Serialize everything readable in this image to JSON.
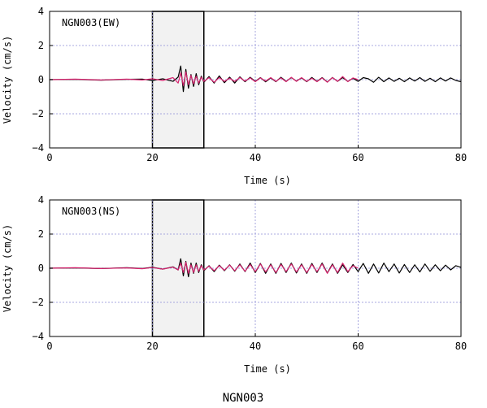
{
  "figure_caption": "NGN003",
  "colors": {
    "observed": "#000000",
    "synthetic": "#d6246e",
    "grid": "#8f8fd6",
    "window_fill": "#f2f2f2"
  },
  "chart_data": [
    {
      "type": "line",
      "station_label": "NGN003(EW)",
      "xlabel": "Time (s)",
      "ylabel": "Velocity (cm/s)",
      "xlim": [
        0,
        80
      ],
      "ylim": [
        -4,
        4
      ],
      "xticks": [
        "0",
        "20",
        "40",
        "60",
        "80"
      ],
      "yticks": [
        "4",
        "2",
        "0",
        "−2",
        "−4"
      ],
      "xtick_values": [
        0,
        20,
        40,
        60,
        80
      ],
      "ytick_values": [
        4,
        2,
        0,
        -2,
        -4
      ],
      "grid": true,
      "highlight_window": [
        20,
        30
      ],
      "series": [
        {
          "key": "observed",
          "x": [
            0,
            5,
            10,
            15,
            18,
            20,
            22,
            24,
            25,
            25.5,
            26,
            26.5,
            27,
            27.5,
            28,
            28.5,
            29,
            29.5,
            30,
            31,
            32,
            33,
            34,
            35,
            36,
            37,
            38,
            39,
            40,
            41,
            42,
            43,
            44,
            45,
            46,
            47,
            48,
            49,
            50,
            51,
            52,
            53,
            54,
            55,
            56,
            57,
            58,
            59,
            60,
            61,
            62,
            63,
            64,
            65,
            66,
            67,
            68,
            69,
            70,
            71,
            72,
            73,
            74,
            75,
            76,
            77,
            78,
            79,
            80
          ],
          "y": [
            0,
            0.02,
            -0.03,
            0.02,
            0.03,
            -0.05,
            0.05,
            -0.1,
            0.15,
            0.8,
            -0.7,
            0.6,
            -0.5,
            0.3,
            -0.4,
            0.35,
            -0.3,
            0.2,
            -0.15,
            0.18,
            -0.2,
            0.22,
            -0.18,
            0.15,
            -0.2,
            0.16,
            -0.12,
            0.14,
            -0.1,
            0.12,
            -0.13,
            0.1,
            -0.12,
            0.14,
            -0.1,
            0.12,
            -0.08,
            0.1,
            -0.12,
            0.13,
            -0.1,
            0.12,
            -0.14,
            0.13,
            -0.1,
            0.12,
            -0.1,
            0.08,
            -0.1,
            0.12,
            0.05,
            -0.15,
            0.14,
            -0.12,
            0.1,
            -0.1,
            0.08,
            -0.12,
            0.1,
            -0.08,
            0.12,
            -0.1,
            0.08,
            -0.12,
            0.1,
            -0.08,
            0.1,
            -0.05,
            -0.12
          ]
        },
        {
          "key": "synthetic",
          "x": [
            0,
            5,
            10,
            15,
            18,
            20,
            22,
            24,
            25,
            25.5,
            26,
            26.5,
            27,
            27.5,
            28,
            28.5,
            29,
            29.5,
            30,
            31,
            32,
            33,
            34,
            35,
            36,
            37,
            38,
            39,
            40,
            41,
            42,
            43,
            44,
            45,
            46,
            47,
            48,
            49,
            50,
            51,
            52,
            53,
            54,
            55,
            56,
            57,
            58,
            59,
            60
          ],
          "y": [
            0,
            0.03,
            -0.02,
            0.03,
            -0.02,
            0.05,
            -0.05,
            0.12,
            -0.2,
            0.4,
            -0.35,
            0.45,
            -0.3,
            0.25,
            -0.25,
            0.2,
            -0.2,
            0.15,
            -0.1,
            0.12,
            -0.15,
            0.12,
            -0.1,
            0.08,
            -0.1,
            0.12,
            -0.08,
            0.1,
            -0.12,
            0.1,
            -0.08,
            0.12,
            -0.1,
            0.1,
            -0.12,
            0.14,
            -0.1,
            0.12,
            -0.1,
            0.08,
            -0.12,
            0.1,
            -0.15,
            0.12,
            -0.1,
            0.18,
            -0.12,
            0.1,
            0
          ]
        }
      ]
    },
    {
      "type": "line",
      "station_label": "NGN003(NS)",
      "xlabel": "Time (s)",
      "ylabel": "Velocity (cm/s)",
      "xlim": [
        0,
        80
      ],
      "ylim": [
        -4,
        4
      ],
      "xticks": [
        "0",
        "20",
        "40",
        "60",
        "80"
      ],
      "yticks": [
        "4",
        "2",
        "0",
        "−2",
        "−4"
      ],
      "xtick_values": [
        0,
        20,
        40,
        60,
        80
      ],
      "ytick_values": [
        4,
        2,
        0,
        -2,
        -4
      ],
      "grid": true,
      "highlight_window": [
        20,
        30
      ],
      "series": [
        {
          "key": "observed",
          "x": [
            0,
            5,
            10,
            15,
            18,
            20,
            22,
            24,
            25,
            25.5,
            26,
            26.5,
            27,
            27.5,
            28,
            28.5,
            29,
            29.5,
            30,
            31,
            32,
            33,
            34,
            35,
            36,
            37,
            38,
            39,
            40,
            41,
            42,
            43,
            44,
            45,
            46,
            47,
            48,
            49,
            50,
            51,
            52,
            53,
            54,
            55,
            56,
            57,
            58,
            59,
            60,
            61,
            62,
            63,
            64,
            65,
            66,
            67,
            68,
            69,
            70,
            71,
            72,
            73,
            74,
            75,
            76,
            77,
            78,
            79,
            80
          ],
          "y": [
            0,
            0.02,
            -0.02,
            0.03,
            -0.02,
            0.05,
            -0.05,
            0.08,
            -0.1,
            0.55,
            -0.45,
            0.4,
            -0.5,
            0.3,
            -0.3,
            0.3,
            -0.25,
            0.2,
            -0.15,
            0.15,
            -0.2,
            0.18,
            -0.15,
            0.2,
            -0.18,
            0.25,
            -0.2,
            0.3,
            -0.25,
            0.28,
            -0.3,
            0.25,
            -0.3,
            0.28,
            -0.25,
            0.3,
            -0.28,
            0.25,
            -0.3,
            0.28,
            -0.25,
            0.3,
            -0.28,
            0.25,
            -0.3,
            0.2,
            -0.25,
            0.22,
            -0.2,
            0.28,
            -0.3,
            0.25,
            -0.28,
            0.3,
            -0.2,
            0.25,
            -0.28,
            0.22,
            -0.25,
            0.2,
            -0.22,
            0.25,
            -0.18,
            0.2,
            -0.15,
            0.18,
            -0.1,
            0.15,
            0.05
          ]
        },
        {
          "key": "synthetic",
          "x": [
            0,
            5,
            10,
            15,
            18,
            20,
            22,
            24,
            25,
            25.5,
            26,
            26.5,
            27,
            27.5,
            28,
            28.5,
            29,
            29.5,
            30,
            31,
            32,
            33,
            34,
            35,
            36,
            37,
            38,
            39,
            40,
            41,
            42,
            43,
            44,
            45,
            46,
            47,
            48,
            49,
            50,
            51,
            52,
            53,
            54,
            55,
            56,
            57,
            58,
            59,
            60
          ],
          "y": [
            0,
            0.03,
            -0.02,
            0.02,
            -0.03,
            0.04,
            -0.05,
            0.06,
            -0.1,
            0.3,
            -0.25,
            0.35,
            -0.3,
            0.2,
            -0.25,
            0.2,
            -0.18,
            0.15,
            -0.1,
            0.12,
            -0.15,
            0.15,
            -0.12,
            0.18,
            -0.15,
            0.2,
            -0.18,
            0.22,
            -0.2,
            0.25,
            -0.22,
            0.2,
            -0.25,
            0.22,
            -0.2,
            0.25,
            -0.22,
            0.2,
            -0.25,
            0.22,
            -0.2,
            0.25,
            -0.3,
            0.2,
            -0.25,
            0.3,
            -0.2,
            0.15,
            0
          ]
        }
      ]
    }
  ]
}
